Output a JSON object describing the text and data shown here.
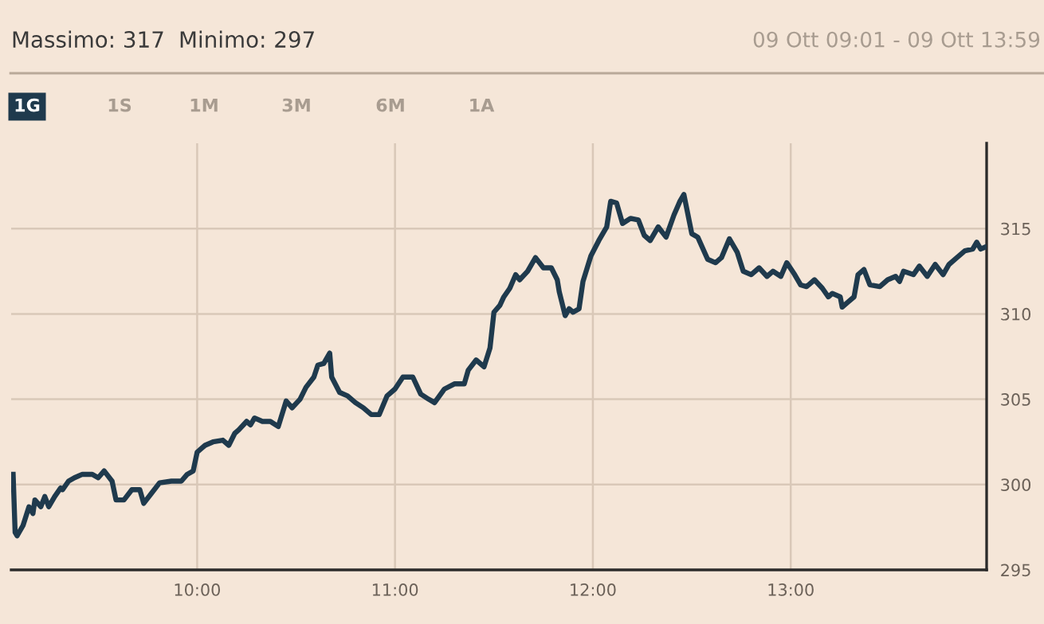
{
  "chart_data": {
    "type": "line",
    "annotations": [
      "Massimo: 317",
      "Minimo: 297",
      "09 Ott 09:01 - 09 Ott 13:59",
      "1G",
      "1S",
      "1M",
      "3M",
      "6M",
      "1A"
    ],
    "x": [
      9.07,
      9.08,
      9.09,
      9.12,
      9.15,
      9.17,
      9.18,
      9.21,
      9.23,
      9.25,
      9.28,
      9.31,
      9.32,
      9.35,
      9.38,
      9.42,
      9.47,
      9.5,
      9.53,
      9.57,
      9.59,
      9.63,
      9.67,
      9.71,
      9.73,
      9.77,
      9.81,
      9.87,
      9.92,
      9.95,
      9.98,
      10.0,
      10.04,
      10.08,
      10.13,
      10.16,
      10.19,
      10.21,
      10.25,
      10.27,
      10.29,
      10.33,
      10.37,
      10.41,
      10.45,
      10.48,
      10.52,
      10.55,
      10.59,
      10.61,
      10.64,
      10.67,
      10.68,
      10.72,
      10.76,
      10.8,
      10.84,
      10.88,
      10.92,
      10.96,
      11.0,
      11.04,
      11.09,
      11.13,
      11.17,
      11.2,
      11.25,
      11.3,
      11.35,
      11.37,
      11.41,
      11.45,
      11.48,
      11.5,
      11.53,
      11.55,
      11.58,
      11.61,
      11.63,
      11.67,
      11.71,
      11.75,
      11.79,
      11.82,
      11.83,
      11.86,
      11.88,
      11.9,
      11.93,
      11.95,
      11.99,
      12.03,
      12.07,
      12.09,
      12.12,
      12.15,
      12.19,
      12.23,
      12.26,
      12.29,
      12.33,
      12.37,
      12.41,
      12.44,
      12.46,
      12.5,
      12.53,
      12.58,
      12.62,
      12.65,
      12.69,
      12.73,
      12.76,
      12.8,
      12.84,
      12.88,
      12.91,
      12.95,
      12.98,
      13.02,
      13.05,
      13.08,
      13.12,
      13.16,
      13.19,
      13.21,
      13.25,
      13.26,
      13.29,
      13.32,
      13.34,
      13.37,
      13.4,
      13.45,
      13.49,
      13.53,
      13.55,
      13.57,
      13.62,
      13.65,
      13.69,
      13.73,
      13.77,
      13.8,
      13.84,
      13.88,
      13.92,
      13.94,
      13.96,
      13.98
    ],
    "series": [
      {
        "color": "#1f3a4d",
        "values": [
          300.6,
          297.2,
          297.0,
          297.6,
          298.7,
          298.3,
          299.1,
          298.7,
          299.3,
          298.7,
          299.3,
          299.8,
          299.7,
          300.2,
          300.4,
          300.6,
          300.6,
          300.4,
          300.8,
          300.2,
          299.1,
          299.1,
          299.7,
          299.7,
          298.9,
          299.5,
          300.1,
          300.2,
          300.2,
          300.6,
          300.8,
          301.9,
          302.3,
          302.5,
          302.6,
          302.3,
          303.0,
          303.2,
          303.7,
          303.5,
          303.9,
          303.7,
          303.7,
          303.4,
          304.9,
          304.5,
          305.0,
          305.7,
          306.3,
          307.0,
          307.1,
          307.7,
          306.3,
          305.4,
          305.2,
          304.8,
          304.5,
          304.1,
          304.1,
          305.2,
          305.6,
          306.3,
          306.3,
          305.3,
          305.0,
          304.8,
          305.6,
          305.9,
          305.9,
          306.7,
          307.3,
          306.9,
          308.0,
          310.1,
          310.5,
          311.0,
          311.5,
          312.3,
          312.0,
          312.5,
          313.3,
          312.7,
          312.7,
          312.0,
          311.3,
          309.9,
          310.3,
          310.1,
          310.3,
          311.9,
          313.4,
          314.3,
          315.1,
          316.6,
          316.5,
          315.3,
          315.6,
          315.5,
          314.6,
          314.3,
          315.1,
          314.5,
          315.8,
          316.6,
          317.0,
          314.7,
          314.5,
          313.2,
          313.0,
          313.3,
          314.4,
          313.6,
          312.5,
          312.3,
          312.7,
          312.2,
          312.5,
          312.2,
          313.0,
          312.3,
          311.7,
          311.6,
          312.0,
          311.5,
          311.0,
          311.2,
          311.0,
          310.4,
          310.7,
          311.0,
          312.3,
          312.6,
          311.7,
          311.6,
          312.0,
          312.2,
          311.9,
          312.5,
          312.3,
          312.8,
          312.2,
          312.9,
          312.3,
          312.9,
          313.3,
          313.7,
          313.8,
          314.2,
          313.8,
          313.9
        ]
      }
    ],
    "xlim": [
      9.06,
      13.99
    ],
    "xticks": [
      {
        "value": 10,
        "label": "10:00"
      },
      {
        "value": 11,
        "label": "11:00"
      },
      {
        "value": 12,
        "label": "12:00"
      },
      {
        "value": 13,
        "label": "13:00"
      }
    ],
    "ylim": [
      295,
      320
    ],
    "yticks": [
      295,
      300,
      305,
      310,
      315
    ],
    "grid": true,
    "marker": "none",
    "line_style": "solid"
  }
}
